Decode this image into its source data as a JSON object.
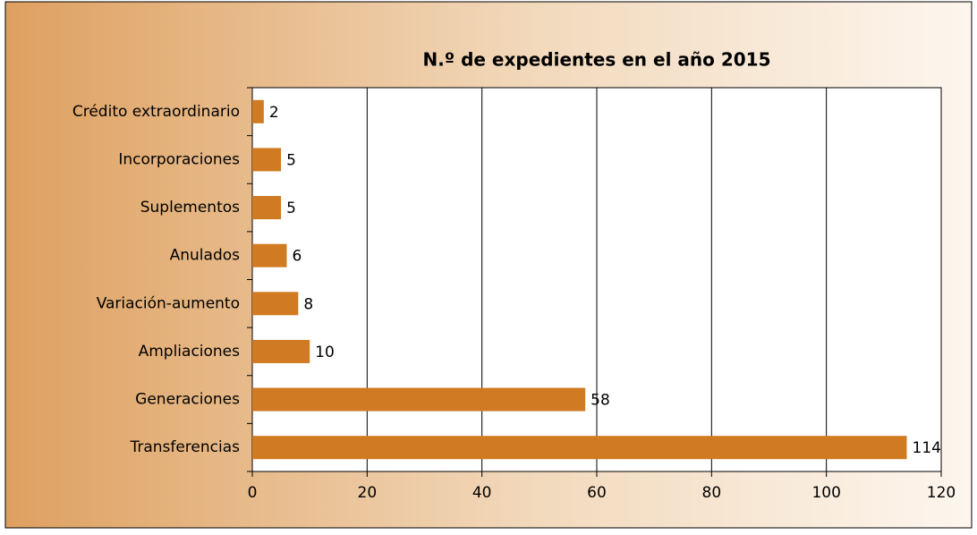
{
  "chart_data": {
    "type": "bar",
    "orientation": "horizontal",
    "title": "N.º de expedientes en el año 2015",
    "categories": [
      "Crédito extraordinario",
      "Incorporaciones",
      "Suplementos",
      "Anulados",
      "Variación-aumento",
      "Ampliaciones",
      "Generaciones",
      "Transferencias"
    ],
    "values": [
      2,
      5,
      5,
      6,
      8,
      10,
      58,
      114
    ],
    "color": "#d07a22",
    "xlim": [
      0,
      120
    ],
    "xticks": [
      0,
      20,
      40,
      60,
      80,
      100,
      120
    ],
    "grid": true
  }
}
